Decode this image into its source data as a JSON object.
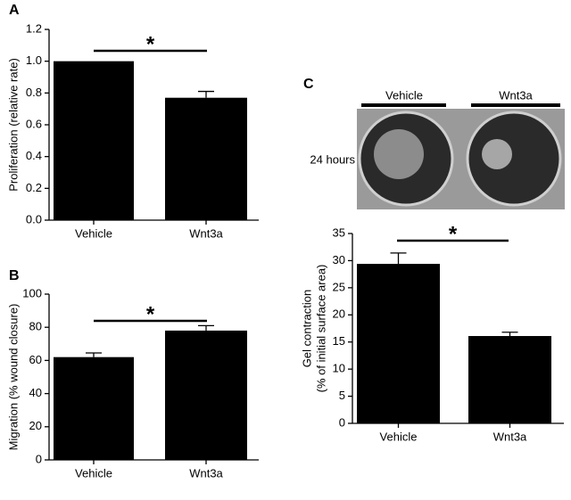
{
  "chart_data": [
    {
      "type": "bar",
      "panel": "A",
      "ylabel": [
        "Proliferation (relative rate)"
      ],
      "annotation": "*",
      "categories": [
        "Vehicle",
        "Wnt3a"
      ],
      "values": [
        1.0,
        0.77
      ],
      "errors": [
        null,
        0.04
      ],
      "color": "#000000",
      "ylim": [
        0,
        1.2
      ],
      "yticks": [
        {
          "value": 0,
          "label": "0.0"
        },
        0.2,
        0.4,
        0.6,
        0.8,
        {
          "value": 1,
          "label": "1.0"
        },
        1.2
      ]
    },
    {
      "type": "bar",
      "panel": "B",
      "ylabel": [
        "Migration (% wound closure)"
      ],
      "annotation": "*",
      "categories": [
        "Vehicle",
        "Wnt3a"
      ],
      "values": [
        62,
        78
      ],
      "errors": [
        2.5,
        3
      ],
      "color": "#000000",
      "ylim": [
        0,
        100
      ],
      "yticks": [
        0,
        20,
        40,
        60,
        80,
        100
      ]
    },
    {
      "type": "bar",
      "panel": "C",
      "ylabel": [
        "Gel contraction",
        "(% of initial surface area)"
      ],
      "annotation": "*",
      "image_labels": [
        "Vehicle",
        "Wnt3a"
      ],
      "image_caption": "24 hours",
      "categories": [
        "Vehicle",
        "Wnt3a"
      ],
      "values": [
        29.4,
        16.1
      ],
      "errors": [
        2,
        0.7
      ],
      "color": "#000000",
      "ylim": [
        0,
        35
      ],
      "yticks": [
        0,
        5,
        10,
        15,
        20,
        25,
        30,
        35
      ]
    }
  ]
}
